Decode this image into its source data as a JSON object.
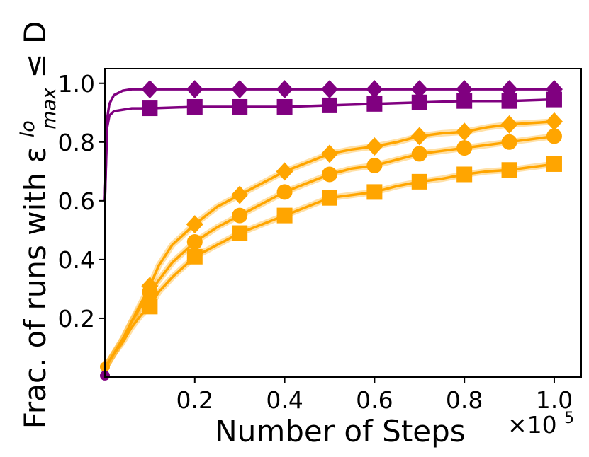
{
  "chart_data": {
    "type": "line",
    "title": "",
    "xlabel": "Number of Steps",
    "x_multiplier": "×10",
    "x_multiplier_exp": "5",
    "ylabel_main": "Frac. of runs with ε",
    "ylabel_sup": "lo",
    "ylabel_sub": "max",
    "ylabel_tail": "≤ D",
    "xlim": [
      0,
      1.06
    ],
    "ylim": [
      0.0,
      1.05
    ],
    "x_ticks": [
      0.2,
      0.4,
      0.6,
      0.8,
      1.0
    ],
    "x_tick_labels": [
      "0.2",
      "0.4",
      "0.6",
      "0.8",
      "1.0"
    ],
    "y_ticks": [
      0.2,
      0.4,
      0.6,
      0.8,
      1.0
    ],
    "y_tick_labels": [
      "0.2",
      "0.4",
      "0.6",
      "0.8",
      "1.0"
    ],
    "grid": false,
    "series": [
      {
        "color": "#800080",
        "marker": "diamond",
        "x": [
          0,
          0.005,
          0.01,
          0.02,
          0.04,
          0.06,
          0.08,
          0.1,
          0.2,
          0.3,
          0.4,
          0.5,
          0.6,
          0.7,
          0.8,
          0.9,
          1.0
        ],
        "y": [
          0.6,
          0.88,
          0.93,
          0.96,
          0.975,
          0.98,
          0.98,
          0.98,
          0.98,
          0.98,
          0.98,
          0.98,
          0.98,
          0.98,
          0.98,
          0.98,
          0.98
        ],
        "marker_x": [
          0.1,
          0.2,
          0.3,
          0.4,
          0.5,
          0.6,
          0.7,
          0.8,
          0.9,
          1.0
        ]
      },
      {
        "color": "#800080",
        "marker": "square",
        "x": [
          0,
          0.005,
          0.01,
          0.02,
          0.04,
          0.06,
          0.08,
          0.1,
          0.2,
          0.3,
          0.4,
          0.5,
          0.6,
          0.7,
          0.8,
          0.9,
          1.0
        ],
        "y": [
          0.6,
          0.85,
          0.89,
          0.905,
          0.91,
          0.915,
          0.915,
          0.915,
          0.92,
          0.92,
          0.92,
          0.925,
          0.93,
          0.935,
          0.94,
          0.94,
          0.945
        ],
        "marker_x": [
          0.1,
          0.2,
          0.3,
          0.4,
          0.5,
          0.6,
          0.7,
          0.8,
          0.9,
          1.0
        ]
      },
      {
        "color": "#FFA500",
        "marker": "diamond",
        "x": [
          0,
          0.02,
          0.04,
          0.06,
          0.08,
          0.1,
          0.12,
          0.15,
          0.2,
          0.25,
          0.3,
          0.35,
          0.4,
          0.45,
          0.5,
          0.55,
          0.6,
          0.65,
          0.7,
          0.75,
          0.8,
          0.85,
          0.9,
          0.95,
          1.0
        ],
        "y": [
          0.03,
          0.08,
          0.13,
          0.19,
          0.25,
          0.31,
          0.38,
          0.45,
          0.52,
          0.58,
          0.62,
          0.66,
          0.7,
          0.73,
          0.76,
          0.775,
          0.785,
          0.8,
          0.82,
          0.83,
          0.835,
          0.85,
          0.86,
          0.865,
          0.87
        ],
        "marker_x": [
          0.1,
          0.2,
          0.3,
          0.4,
          0.5,
          0.6,
          0.7,
          0.8,
          0.9,
          1.0
        ]
      },
      {
        "color": "#FFA500",
        "marker": "circle",
        "x": [
          0,
          0.02,
          0.04,
          0.06,
          0.08,
          0.1,
          0.12,
          0.15,
          0.2,
          0.25,
          0.3,
          0.35,
          0.4,
          0.45,
          0.5,
          0.55,
          0.6,
          0.65,
          0.7,
          0.75,
          0.8,
          0.85,
          0.9,
          0.95,
          1.0
        ],
        "y": [
          0.03,
          0.08,
          0.13,
          0.19,
          0.24,
          0.29,
          0.33,
          0.39,
          0.46,
          0.51,
          0.55,
          0.59,
          0.63,
          0.66,
          0.69,
          0.71,
          0.72,
          0.74,
          0.76,
          0.77,
          0.78,
          0.79,
          0.8,
          0.81,
          0.82
        ],
        "marker_x": [
          0.1,
          0.2,
          0.3,
          0.4,
          0.5,
          0.6,
          0.7,
          0.8,
          0.9,
          1.0
        ]
      },
      {
        "color": "#FFA500",
        "marker": "square",
        "x": [
          0,
          0.02,
          0.04,
          0.06,
          0.08,
          0.1,
          0.12,
          0.15,
          0.2,
          0.25,
          0.3,
          0.35,
          0.4,
          0.45,
          0.5,
          0.55,
          0.6,
          0.65,
          0.7,
          0.75,
          0.8,
          0.85,
          0.9,
          0.95,
          1.0
        ],
        "y": [
          0.03,
          0.08,
          0.12,
          0.17,
          0.21,
          0.24,
          0.29,
          0.34,
          0.41,
          0.45,
          0.49,
          0.52,
          0.55,
          0.58,
          0.61,
          0.62,
          0.63,
          0.65,
          0.665,
          0.675,
          0.69,
          0.7,
          0.705,
          0.715,
          0.725
        ],
        "marker_x": [
          0.1,
          0.2,
          0.3,
          0.4,
          0.5,
          0.6,
          0.7,
          0.8,
          0.9,
          1.0
        ]
      }
    ]
  }
}
